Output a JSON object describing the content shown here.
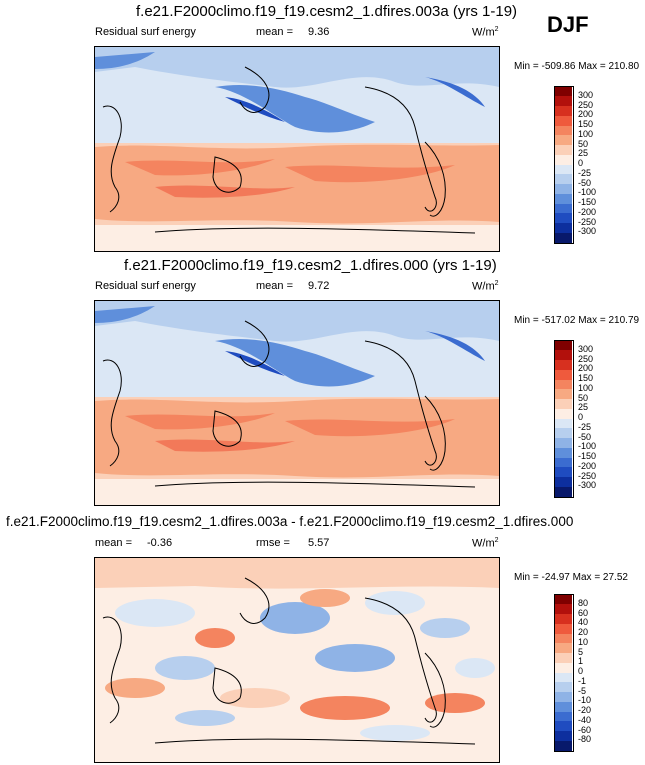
{
  "season": "DJF",
  "panels": [
    {
      "title": "f.e21.F2000climo.f19_f19.cesm2_1.dfires.003a (yrs 1-19)",
      "variable": "Residual surf energy",
      "stat1_label": "mean =",
      "stat1_value": "9.36",
      "units": "W/m",
      "units_sup": "2",
      "minmax": "Min = -509.86 Max = 210.80"
    },
    {
      "title": "f.e21.F2000climo.f19_f19.cesm2_1.dfires.000 (yrs 1-19)",
      "variable": "Residual surf energy",
      "stat1_label": "mean =",
      "stat1_value": "9.72",
      "units": "W/m",
      "units_sup": "2",
      "minmax": "Min = -517.02 Max = 210.79"
    },
    {
      "title": "f.e21.F2000climo.f19_f19.cesm2_1.dfires.003a - f.e21.F2000climo.f19_f19.cesm2_1.dfires.000",
      "stat1_label": "mean =",
      "stat1_value": "-0.36",
      "stat2_label": "rmse =",
      "stat2_value": "5.57",
      "units": "W/m",
      "units_sup": "2",
      "minmax": "Min = -24.97 Max = 27.52"
    }
  ],
  "chart_data": [
    {
      "type": "heatmap",
      "title": "f.e21.F2000climo.f19_f19.cesm2_1.dfires.003a (yrs 1-19)",
      "variable": "Residual surf energy",
      "units": "W/m2",
      "mean": 9.36,
      "min": -509.86,
      "max": 210.8,
      "colorbar_levels": [
        "300",
        "250",
        "200",
        "150",
        "100",
        "50",
        "25",
        "0",
        "-25",
        "-50",
        "-100",
        "-150",
        "-200",
        "-250",
        "-300"
      ],
      "colorbar_colors": [
        "#7f0000",
        "#b2100c",
        "#d7301f",
        "#ef5a3d",
        "#f4845f",
        "#f7a982",
        "#fbd0b8",
        "#fdeee4",
        "#dbe7f5",
        "#b7cfee",
        "#8fb3e6",
        "#5f8fdb",
        "#3b6cd0",
        "#1f4cc0",
        "#0d2f9e",
        "#08196b"
      ]
    },
    {
      "type": "heatmap",
      "title": "f.e21.F2000climo.f19_f19.cesm2_1.dfires.000 (yrs 1-19)",
      "variable": "Residual surf energy",
      "units": "W/m2",
      "mean": 9.72,
      "min": -517.02,
      "max": 210.79,
      "colorbar_levels": [
        "300",
        "250",
        "200",
        "150",
        "100",
        "50",
        "25",
        "0",
        "-25",
        "-50",
        "-100",
        "-150",
        "-200",
        "-250",
        "-300"
      ],
      "colorbar_colors": [
        "#7f0000",
        "#b2100c",
        "#d7301f",
        "#ef5a3d",
        "#f4845f",
        "#f7a982",
        "#fbd0b8",
        "#fdeee4",
        "#dbe7f5",
        "#b7cfee",
        "#8fb3e6",
        "#5f8fdb",
        "#3b6cd0",
        "#1f4cc0",
        "#0d2f9e",
        "#08196b"
      ]
    },
    {
      "type": "heatmap",
      "title": "f.e21.F2000climo.f19_f19.cesm2_1.dfires.003a - f.e21.F2000climo.f19_f19.cesm2_1.dfires.000",
      "units": "W/m2",
      "mean": -0.36,
      "rmse": 5.57,
      "min": -24.97,
      "max": 27.52,
      "colorbar_levels": [
        "80",
        "60",
        "40",
        "20",
        "10",
        "5",
        "1",
        "0",
        "-1",
        "-5",
        "-10",
        "-20",
        "-40",
        "-60",
        "-80"
      ],
      "colorbar_colors": [
        "#7f0000",
        "#b2100c",
        "#d7301f",
        "#ef5a3d",
        "#f4845f",
        "#f7a982",
        "#fbd0b8",
        "#fdeee4",
        "#dbe7f5",
        "#b7cfee",
        "#8fb3e6",
        "#5f8fdb",
        "#3b6cd0",
        "#1f4cc0",
        "#0d2f9e",
        "#08196b"
      ]
    }
  ]
}
